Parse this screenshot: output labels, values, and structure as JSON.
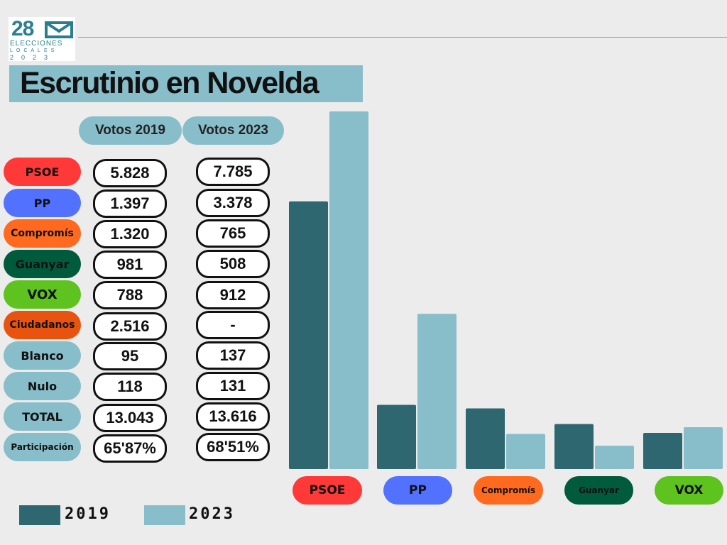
{
  "logo": {
    "number": "28",
    "line1": "ELECCIONES",
    "line2": "LOCALES",
    "line3": "2023"
  },
  "title": "Escrutinio en Novelda",
  "table": {
    "headers": [
      "Votos 2019",
      "Votos 2023"
    ],
    "rows": [
      {
        "label": "PSOE",
        "v2019": "5.828",
        "v2023": "7.785",
        "color": "#ff3838"
      },
      {
        "label": "PP",
        "v2019": "1.397",
        "v2023": "3.378",
        "color": "#5271ff"
      },
      {
        "label": "Compromís",
        "v2019": "1.320",
        "v2023": "765",
        "color": "#ff6a1f"
      },
      {
        "label": "Guanyar",
        "v2019": "981",
        "v2023": "508",
        "color": "#005a3c"
      },
      {
        "label": "VOX",
        "v2019": "788",
        "v2023": "912",
        "color": "#5ec21f"
      },
      {
        "label": "Ciudadanos",
        "v2019": "2.516",
        "v2023": "-",
        "color": "#e8540f"
      },
      {
        "label": "Blanco",
        "v2019": "95",
        "v2023": "137",
        "color": "#88bdca"
      },
      {
        "label": "Nulo",
        "v2019": "118",
        "v2023": "131",
        "color": "#88bdca"
      },
      {
        "label": "TOTAL",
        "v2019": "13.043",
        "v2023": "13.616",
        "color": "#88bdca"
      },
      {
        "label": "Participación",
        "v2019": "65'87%",
        "v2023": "68'51%",
        "color": "#88bdca"
      }
    ]
  },
  "chart_data": {
    "type": "bar",
    "categories": [
      "PSOE",
      "PP",
      "Compromís",
      "Guanyar",
      "VOX"
    ],
    "category_colors": [
      "#ff3838",
      "#5271ff",
      "#ff6a1f",
      "#005a3c",
      "#5ec21f"
    ],
    "series": [
      {
        "name": "2019",
        "values": [
          5828,
          1397,
          1320,
          981,
          788
        ],
        "color": "#2e6770"
      },
      {
        "name": "2023",
        "values": [
          7785,
          3378,
          765,
          508,
          912
        ],
        "color": "#88bdca"
      }
    ],
    "ylim": [
      0,
      7785
    ],
    "legend_position": "bottom-left"
  }
}
